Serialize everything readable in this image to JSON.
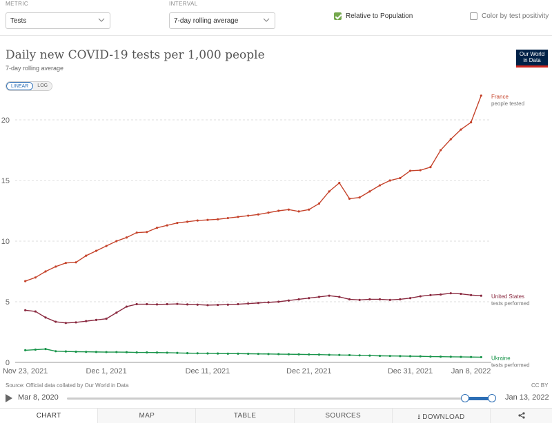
{
  "controls": {
    "metric_label": "METRIC",
    "metric_value": "Tests",
    "interval_label": "INTERVAL",
    "interval_value": "7-day rolling average",
    "relative_label": "Relative to Population",
    "relative_checked": true,
    "positivity_label": "Color by test positivity",
    "positivity_checked": false
  },
  "header": {
    "title": "Daily new COVID-19 tests per 1,000 people",
    "subtitle": "7-day rolling average",
    "logo_line1": "Our World",
    "logo_line2": "in Data",
    "scale_linear": "LINEAR",
    "scale_log": "LOG"
  },
  "chart_data": {
    "type": "line",
    "title": "Daily new COVID-19 tests per 1,000 people",
    "subtitle": "7-day rolling average",
    "x_labels": [
      "Nov 23, 2021",
      "Dec 1, 2021",
      "Dec 11, 2021",
      "Dec 21, 2021",
      "Dec 31, 2021",
      "Jan 8, 2022"
    ],
    "x_range": [
      -3,
      44
    ],
    "ylim": [
      0,
      22.5
    ],
    "y_ticks": [
      0,
      5,
      10,
      15,
      20
    ],
    "grid": true,
    "x": [
      -2,
      -1,
      0,
      1,
      2,
      3,
      4,
      5,
      6,
      7,
      8,
      9,
      10,
      11,
      12,
      13,
      14,
      15,
      16,
      17,
      18,
      19,
      20,
      21,
      22,
      23,
      24,
      25,
      26,
      27,
      28,
      29,
      30,
      31,
      32,
      33,
      34,
      35,
      36,
      37,
      38,
      39,
      40,
      41,
      42,
      43
    ],
    "series": [
      {
        "name": "France",
        "sub": "people tested",
        "color": "#c5432b",
        "values": [
          6.7,
          7.0,
          7.5,
          7.9,
          8.2,
          8.25,
          8.8,
          9.2,
          9.6,
          10.0,
          10.3,
          10.7,
          10.75,
          11.1,
          11.3,
          11.5,
          11.6,
          11.7,
          11.75,
          11.8,
          11.9,
          12.0,
          12.1,
          12.2,
          12.35,
          12.5,
          12.6,
          12.45,
          12.6,
          13.1,
          14.1,
          14.8,
          13.5,
          13.6,
          14.1,
          14.6,
          15.0,
          15.2,
          15.8,
          15.85,
          16.1,
          17.5,
          18.4,
          19.2,
          19.8,
          22.0
        ]
      },
      {
        "name": "United States",
        "sub": "tests performed",
        "color": "#8a2a40",
        "values": [
          4.3,
          4.2,
          3.7,
          3.35,
          3.25,
          3.3,
          3.4,
          3.5,
          3.6,
          4.1,
          4.6,
          4.8,
          4.8,
          4.78,
          4.8,
          4.82,
          4.78,
          4.76,
          4.72,
          4.74,
          4.76,
          4.8,
          4.85,
          4.9,
          4.95,
          5.0,
          5.1,
          5.2,
          5.3,
          5.4,
          5.5,
          5.4,
          5.2,
          5.15,
          5.2,
          5.2,
          5.15,
          5.2,
          5.3,
          5.45,
          5.55,
          5.6,
          5.7,
          5.65,
          5.55,
          5.5
        ]
      },
      {
        "name": "Ukraine",
        "sub": "tests performed",
        "color": "#18944a",
        "values": [
          1.0,
          1.05,
          1.1,
          0.92,
          0.9,
          0.88,
          0.87,
          0.86,
          0.85,
          0.85,
          0.84,
          0.82,
          0.82,
          0.81,
          0.8,
          0.78,
          0.76,
          0.75,
          0.74,
          0.73,
          0.72,
          0.72,
          0.71,
          0.7,
          0.69,
          0.68,
          0.67,
          0.66,
          0.65,
          0.64,
          0.62,
          0.61,
          0.6,
          0.58,
          0.56,
          0.54,
          0.53,
          0.52,
          0.51,
          0.5,
          0.48,
          0.47,
          0.46,
          0.45,
          0.44,
          0.43
        ]
      }
    ]
  },
  "source": "Source: Official data collated by Our World in Data",
  "license": "CC BY",
  "timeline": {
    "start_label": "Mar 8, 2020",
    "end_label": "Jan 13, 2022",
    "range_start": 0.936,
    "range_end": 1.0
  },
  "tabs": [
    "CHART",
    "MAP",
    "TABLE",
    "SOURCES",
    "DOWNLOAD"
  ]
}
